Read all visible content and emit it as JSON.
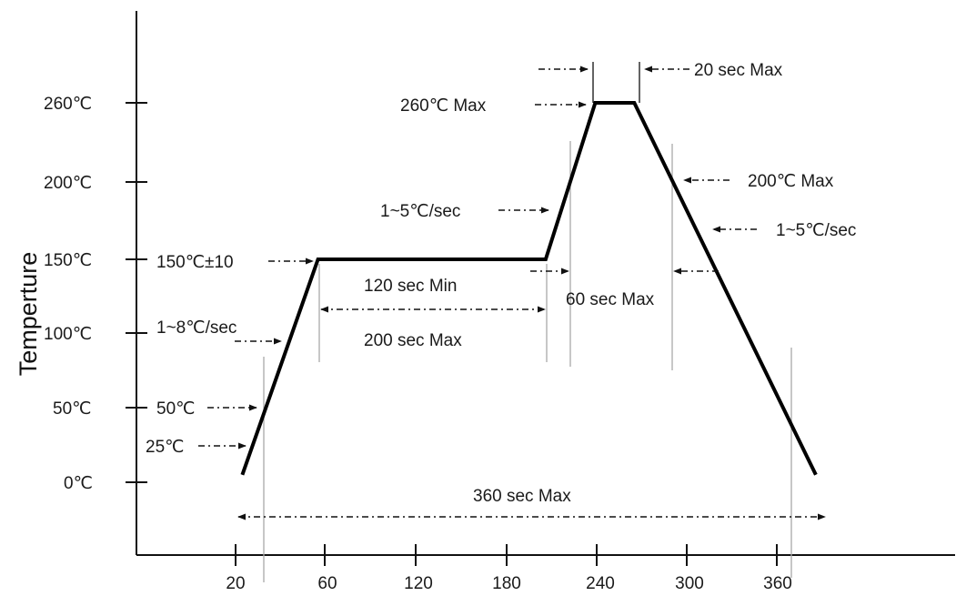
{
  "chart_data": {
    "type": "line",
    "ylabel": "Temperture",
    "x_ticks": [
      "20",
      "60",
      "120",
      "180",
      "240",
      "300",
      "360"
    ],
    "y_ticks": [
      "0℃",
      "50℃",
      "100℃",
      "150℃",
      "200℃",
      "260℃"
    ],
    "series": [
      {
        "points": [
          {
            "x": 23,
            "y": 5
          },
          {
            "x": 57,
            "y": 150
          },
          {
            "x": 206,
            "y": 150
          },
          {
            "x": 239,
            "y": 260
          },
          {
            "x": 265,
            "y": 260
          },
          {
            "x": 386,
            "y": 5
          }
        ]
      }
    ],
    "annotations": {
      "peak": "260℃ Max",
      "peak_time": "20 sec Max",
      "soak_temp": "150℃±10",
      "soak_min": "120 sec Min",
      "soak_max": "200 sec Max",
      "ramp_up_preheat": "1~8℃/sec",
      "ramp_up_reflow": "1~5℃/sec",
      "above_200": "60 sec Max",
      "max_200": "200℃ Max",
      "ramp_down": "1~5℃/sec",
      "start_50": "50℃",
      "start_25": "25℃",
      "total": "360 sec Max"
    }
  }
}
